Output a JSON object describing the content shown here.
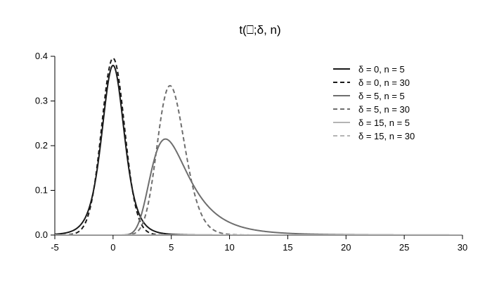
{
  "chart_data": {
    "type": "line",
    "title": "t(⎕;δ, n)",
    "xlabel": "",
    "ylabel": "",
    "xlim": [
      -5,
      30
    ],
    "ylim": [
      0,
      0.4
    ],
    "xticks": [
      "-5",
      "0",
      "5",
      "10",
      "15",
      "20",
      "25",
      "30"
    ],
    "yticks": [
      "0.0",
      "0.1",
      "0.2",
      "0.3",
      "0.4"
    ],
    "legend_position": "top-right",
    "grid": false,
    "series": [
      {
        "name": "δ = 0, n = 5",
        "delta": 0,
        "df": 5,
        "color": "#1a1a1a",
        "dash": "solid"
      },
      {
        "name": "δ = 0, n = 30",
        "delta": 0,
        "df": 30,
        "color": "#1a1a1a",
        "dash": "dashed"
      },
      {
        "name": "δ = 5, n = 5",
        "delta": 5,
        "df": 5,
        "color": "#6e6e6e",
        "dash": "solid"
      },
      {
        "name": "δ = 5, n = 30",
        "delta": 5,
        "df": 30,
        "color": "#6e6e6e",
        "dash": "dashed"
      },
      {
        "name": "δ = 15, n = 5",
        "delta": 15,
        "df": 5,
        "color": "#b4b4b4",
        "dash": "solid"
      },
      {
        "name": "δ = 15, n = 30",
        "delta": 15,
        "df": 30,
        "color": "#b4b4b4",
        "dash": "dashed"
      }
    ]
  }
}
